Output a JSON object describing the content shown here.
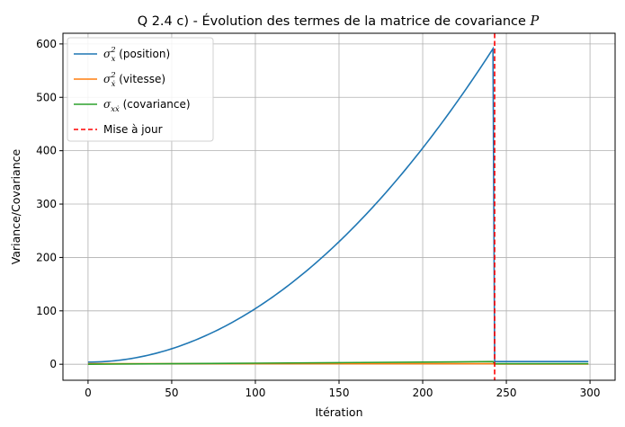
{
  "chart_data": {
    "type": "line",
    "title": "Q 2.4 c) - Évolution des termes de la matrice de covariance ",
    "title_math": "P",
    "xlabel": "Itération",
    "ylabel": "Variance/Covariance",
    "xlim": [
      -15,
      315
    ],
    "ylim": [
      -30,
      620
    ],
    "xticks": [
      0,
      50,
      100,
      150,
      200,
      250,
      300
    ],
    "yticks": [
      0,
      100,
      200,
      300,
      400,
      500,
      600
    ],
    "grid": true,
    "legend_position": "top-left",
    "update_iteration": 243,
    "series": [
      {
        "id": "pos",
        "name_math": "σ",
        "name_sub": "x",
        "name_sup": "2",
        "name_rest": " (position)",
        "color": "#1f77b4",
        "x": [
          0,
          20,
          40,
          60,
          80,
          100,
          120,
          140,
          160,
          180,
          200,
          220,
          242,
          243,
          260,
          280,
          299
        ],
        "y": [
          4,
          10,
          21,
          38,
          70,
          104,
          145,
          197,
          259,
          330,
          408,
          495,
          591,
          5,
          5,
          5,
          5
        ]
      },
      {
        "id": "vel",
        "name_math": "σ",
        "name_sub": "ẋ",
        "name_sup": "2",
        "name_rest": " (vitesse)",
        "color": "#ff7f0e",
        "x": [
          0,
          100,
          200,
          242,
          243,
          299
        ],
        "y": [
          1,
          1,
          1,
          1,
          0.5,
          0.5
        ]
      },
      {
        "id": "cov",
        "name_math": "σ",
        "name_sub": "xẋ",
        "name_sup": "",
        "name_rest": " (covariance)",
        "color": "#2ca02c",
        "x": [
          0,
          50,
          100,
          150,
          200,
          242,
          243,
          299
        ],
        "y": [
          0,
          1,
          2,
          3,
          4,
          5,
          1,
          1
        ]
      }
    ],
    "vline": {
      "label": "Mise à jour",
      "color": "#ff0000"
    }
  }
}
